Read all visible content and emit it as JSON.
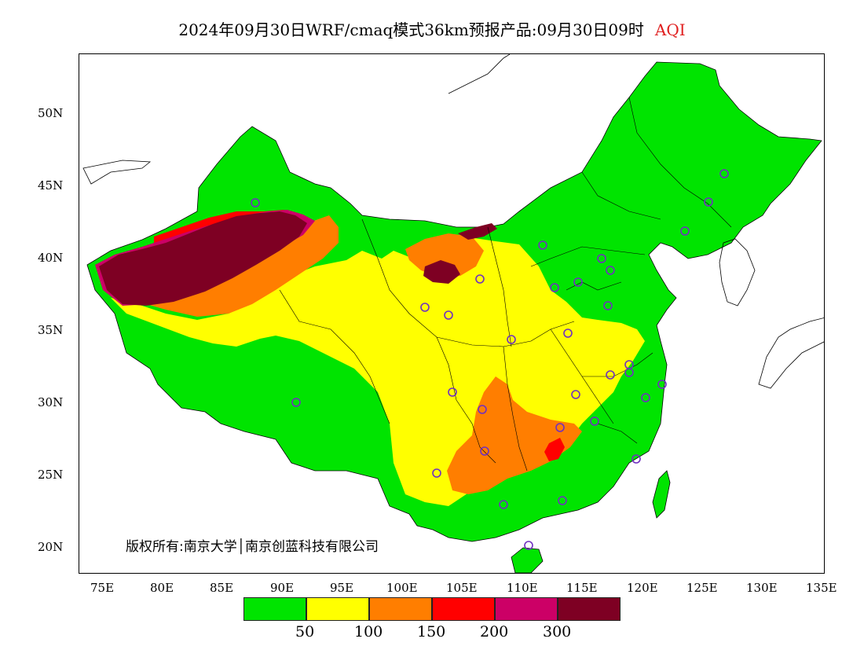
{
  "header": {
    "title": "2024年09月30日WRF/cmaq模式36km预报产品:09月30日09时",
    "variable": "AQI"
  },
  "map": {
    "lat_labels": [
      "50N",
      "45N",
      "40N",
      "35N",
      "30N",
      "25N",
      "20N"
    ],
    "lon_labels": [
      "75E",
      "80E",
      "85E",
      "90E",
      "95E",
      "100E",
      "105E",
      "110E",
      "115E",
      "120E",
      "125E",
      "130E",
      "135E"
    ],
    "copyright": "版权所有:南京大学│南京创蓝科技有限公司"
  },
  "legend": {
    "colors": [
      "#00e400",
      "#ffff00",
      "#ff7e00",
      "#ff0000",
      "#cc0066",
      "#7e0023"
    ],
    "thresholds": [
      "50",
      "100",
      "150",
      "200",
      "300"
    ]
  }
}
